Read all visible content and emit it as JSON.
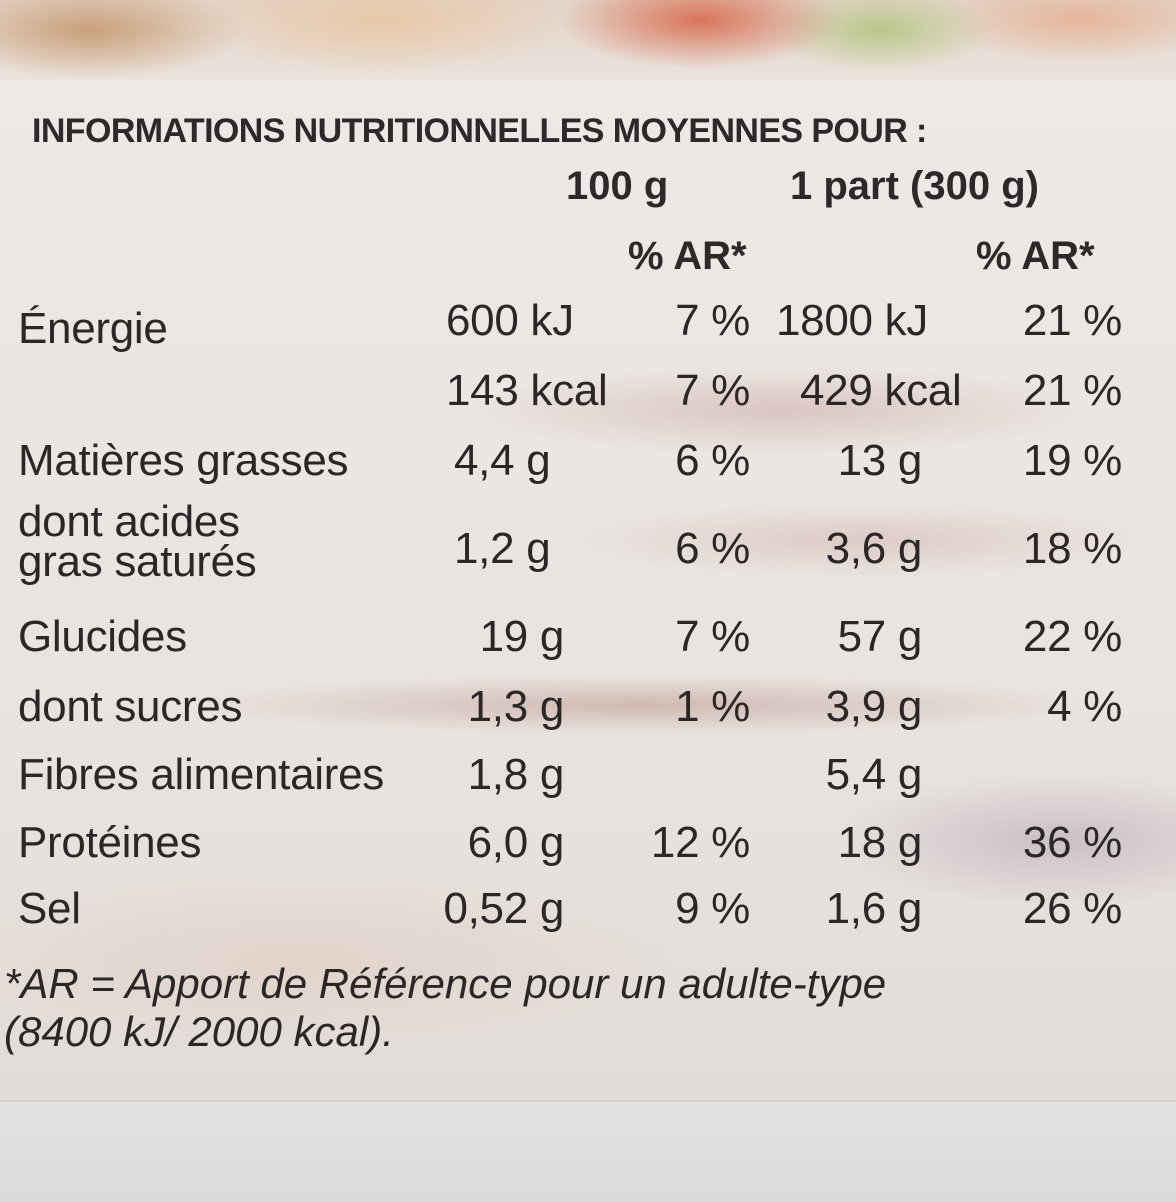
{
  "header": "INFORMATIONS NUTRITIONNELLES MOYENNES POUR :",
  "columns": {
    "per_100g": "100 g",
    "per_portion": "1 part (300 g)",
    "ar_100g": "% AR*",
    "ar_portion": "% AR*"
  },
  "rows": [
    {
      "label": "Énergie",
      "v100": "600 kJ",
      "ar100": "7 %",
      "vpart": "1800 kJ",
      "arpart": "21 %"
    },
    {
      "label": "",
      "v100": "143 kcal",
      "ar100": "7 %",
      "vpart": "429 kcal",
      "arpart": "21 %"
    },
    {
      "label": "Matières grasses",
      "v100": "4,4 g",
      "ar100": "6 %",
      "vpart": "13 g",
      "arpart": "19 %"
    },
    {
      "label_line1": "dont acides",
      "label_line2": "gras saturés",
      "v100": "1,2 g",
      "ar100": "6 %",
      "vpart": "3,6 g",
      "arpart": "18 %"
    },
    {
      "label": "Glucides",
      "v100": "19 g",
      "ar100": "7 %",
      "vpart": "57 g",
      "arpart": "22 %"
    },
    {
      "label": "dont sucres",
      "v100": "1,3 g",
      "ar100": "1 %",
      "vpart": "3,9 g",
      "arpart": "4 %"
    },
    {
      "label": "Fibres alimentaires",
      "v100": "1,8 g",
      "ar100": "",
      "vpart": "5,4 g",
      "arpart": ""
    },
    {
      "label": "Protéines",
      "v100": "6,0 g",
      "ar100": "12 %",
      "vpart": "18 g",
      "arpart": "36 %"
    },
    {
      "label": "Sel",
      "v100": "0,52 g",
      "ar100": "9 %",
      "vpart": "1,6 g",
      "arpart": "26 %"
    }
  ],
  "footnote": {
    "line1": "*AR = Apport de Référence pour un adulte-type",
    "line2": "(8400 kJ/ 2000 kcal)."
  }
}
